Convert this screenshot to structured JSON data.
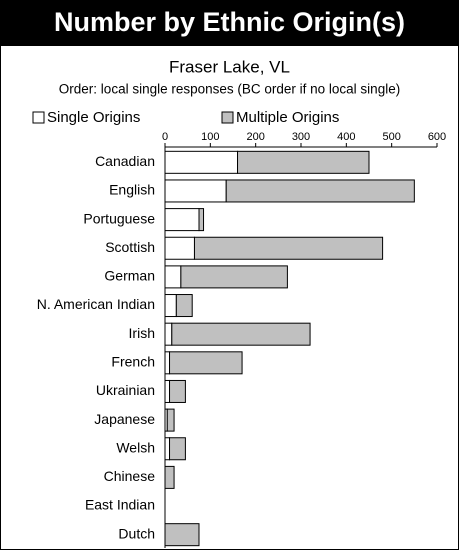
{
  "chart_data": {
    "type": "stacked-bar-horizontal",
    "title": "Number by Ethnic Origin(s)",
    "subtitle": "Fraser Lake, VL",
    "note": "Order: local single responses (BC order if no local single)",
    "categories": [
      "Canadian",
      "English",
      "Portuguese",
      "Scottish",
      "German",
      "N. American Indian",
      "Irish",
      "French",
      "Ukrainian",
      "Japanese",
      "Welsh",
      "Chinese",
      "East Indian",
      "Dutch"
    ],
    "series": [
      {
        "name": "Single Origins",
        "color": "#ffffff",
        "values": [
          160,
          135,
          75,
          65,
          35,
          25,
          15,
          10,
          10,
          5,
          10,
          0,
          0,
          0
        ]
      },
      {
        "name": "Multiple Origins",
        "color": "#c0c0c0",
        "values": [
          290,
          415,
          10,
          415,
          235,
          35,
          305,
          160,
          35,
          15,
          35,
          20,
          0,
          75
        ]
      }
    ],
    "xlim": [
      0,
      600
    ],
    "xticks": [
      0,
      100,
      200,
      300,
      400,
      500,
      600
    ],
    "legend": "top"
  }
}
